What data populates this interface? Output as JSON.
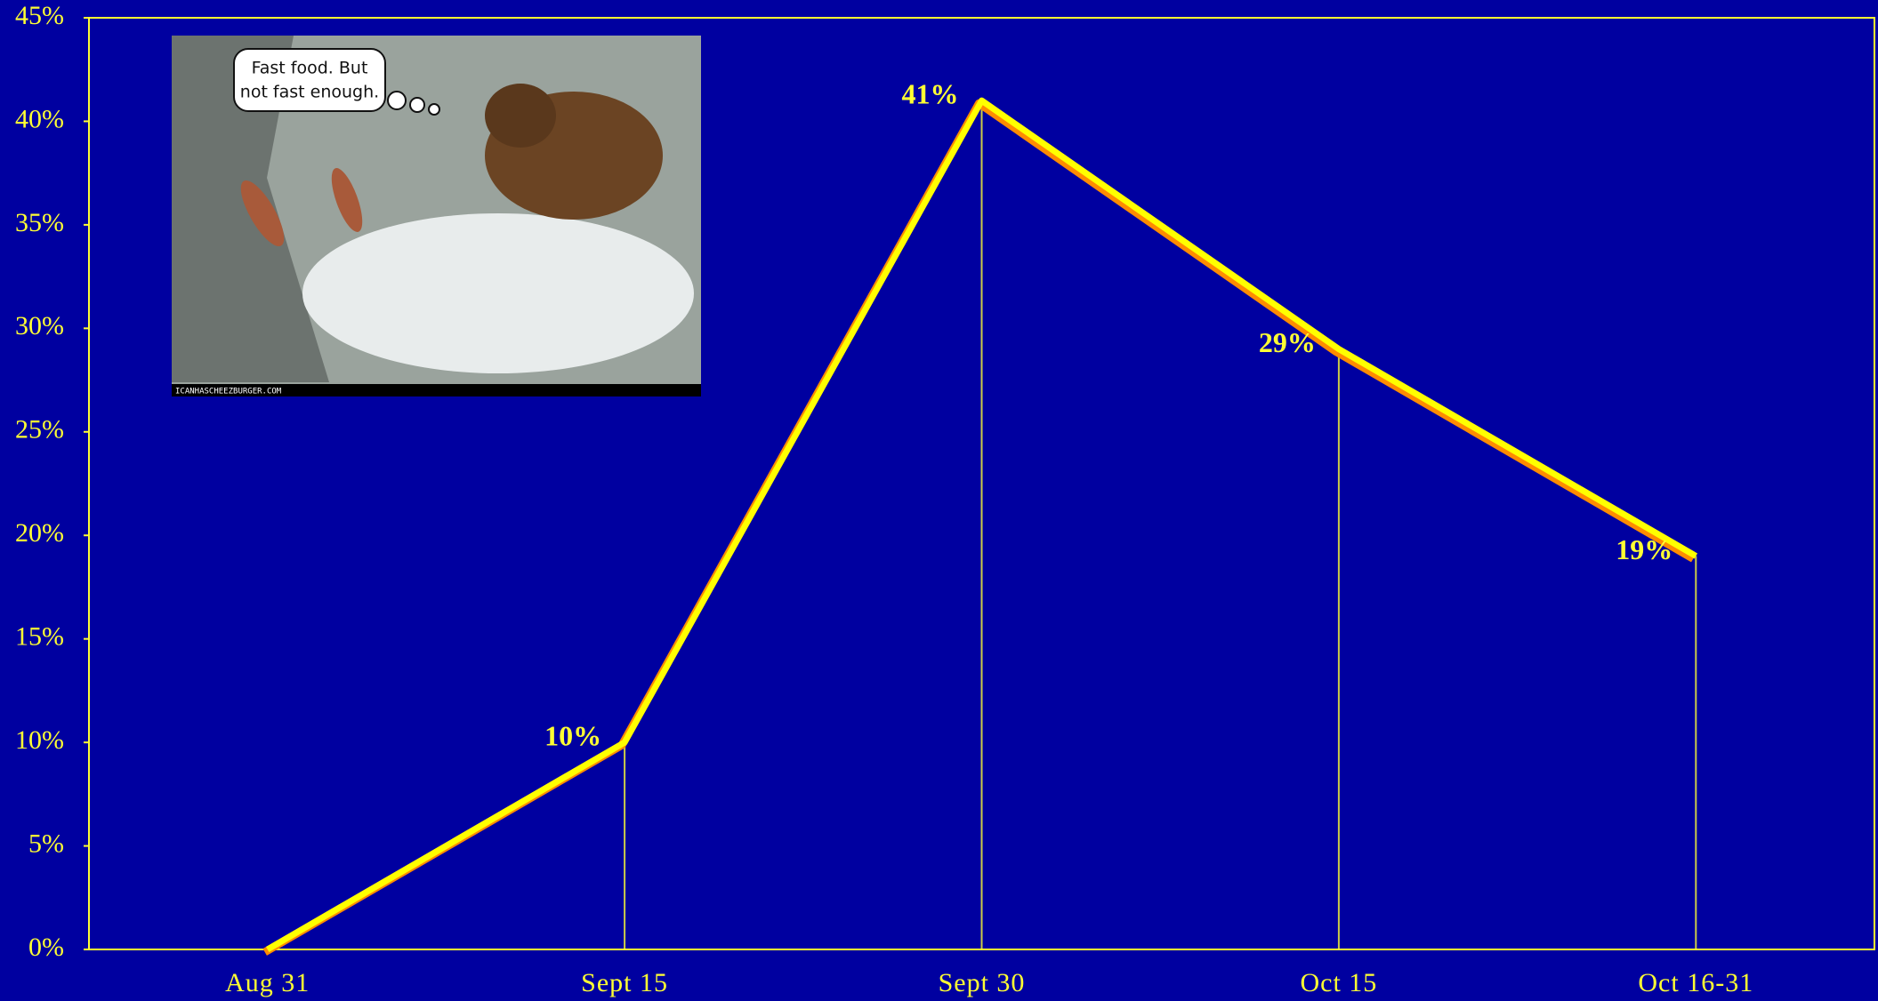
{
  "chart_data": {
    "type": "line",
    "categories": [
      "Aug 31",
      "Sept 15",
      "Sept 30",
      "Oct 15",
      "Oct 16-31"
    ],
    "values": [
      0,
      10,
      41,
      29,
      19
    ],
    "value_labels": [
      null,
      "10%",
      "41%",
      "29%",
      "19%"
    ],
    "color": "#ffff00",
    "ylim": [
      0,
      45
    ],
    "yticks": [
      {
        "value": 0,
        "label": "0%"
      },
      {
        "value": 5,
        "label": "5%"
      },
      {
        "value": 10,
        "label": "10%"
      },
      {
        "value": 15,
        "label": "15%"
      },
      {
        "value": 20,
        "label": "20%"
      },
      {
        "value": 25,
        "label": "25%"
      },
      {
        "value": 30,
        "label": "30%"
      },
      {
        "value": 35,
        "label": "35%"
      },
      {
        "value": 40,
        "label": "40%"
      },
      {
        "value": 45,
        "label": "45%"
      }
    ],
    "image": {
      "caption_lines": [
        "Fast food.  But",
        "not fast enough."
      ],
      "credit": "ICANHASCHEEZBURGER.COM"
    }
  }
}
